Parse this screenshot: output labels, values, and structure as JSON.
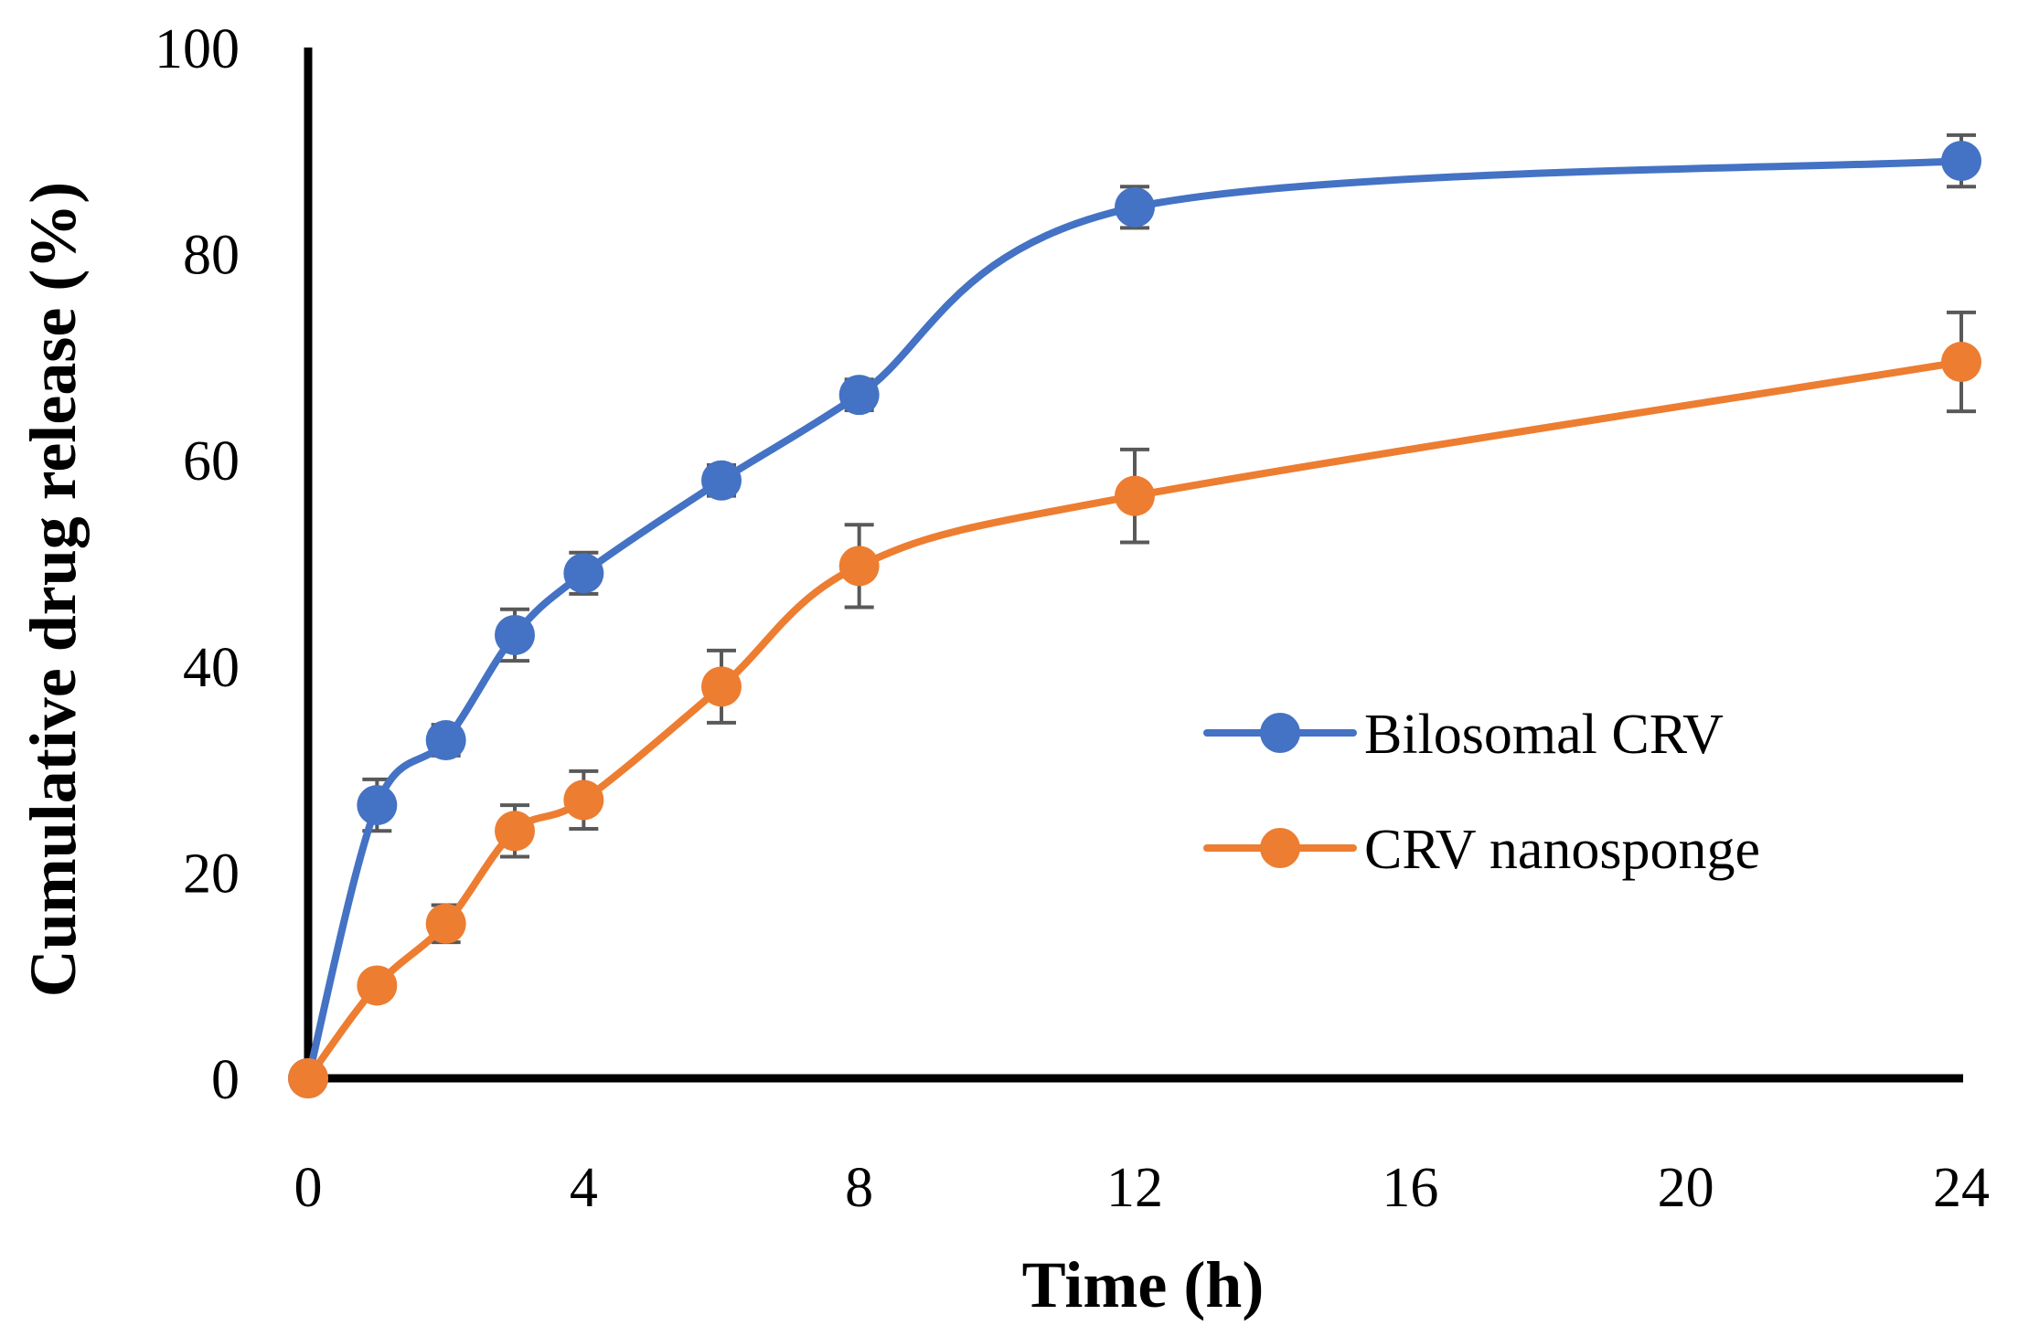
{
  "chart_data": {
    "type": "line",
    "xlabel": "Time (h)",
    "ylabel": "Cumulative drug release (%)",
    "xlim": [
      0,
      24
    ],
    "ylim": [
      0,
      100
    ],
    "x_ticks": [
      0,
      4,
      8,
      12,
      16,
      20,
      24
    ],
    "y_ticks": [
      0,
      20,
      40,
      60,
      80,
      100
    ],
    "x_tick_labels": [
      "0",
      "4",
      "8",
      "12",
      "16",
      "20",
      "24"
    ],
    "y_tick_labels": [
      "0",
      "20",
      "40",
      "60",
      "80",
      "100"
    ],
    "grid": false,
    "legend_position": "right-middle",
    "smoothed": true,
    "series": [
      {
        "name": "Bilosomal CRV",
        "color": "#4472C4",
        "x": [
          0,
          1,
          2,
          3,
          4,
          6,
          8,
          12,
          24
        ],
        "y": [
          0,
          26.5,
          32.8,
          43.0,
          49.0,
          58.0,
          66.3,
          84.5,
          89.0
        ],
        "error": [
          0,
          2.5,
          1.5,
          2.5,
          2.0,
          1.5,
          1.5,
          2.0,
          2.5
        ]
      },
      {
        "name": "CRV nanosponge",
        "color": "#ED7D31",
        "x": [
          0,
          1,
          2,
          3,
          4,
          6,
          8,
          12,
          24
        ],
        "y": [
          0,
          9.0,
          15.0,
          24.0,
          27.0,
          38.0,
          49.7,
          56.5,
          69.5
        ],
        "error": [
          0,
          1.0,
          1.8,
          2.5,
          2.8,
          3.5,
          4.0,
          4.5,
          4.8
        ]
      }
    ]
  }
}
